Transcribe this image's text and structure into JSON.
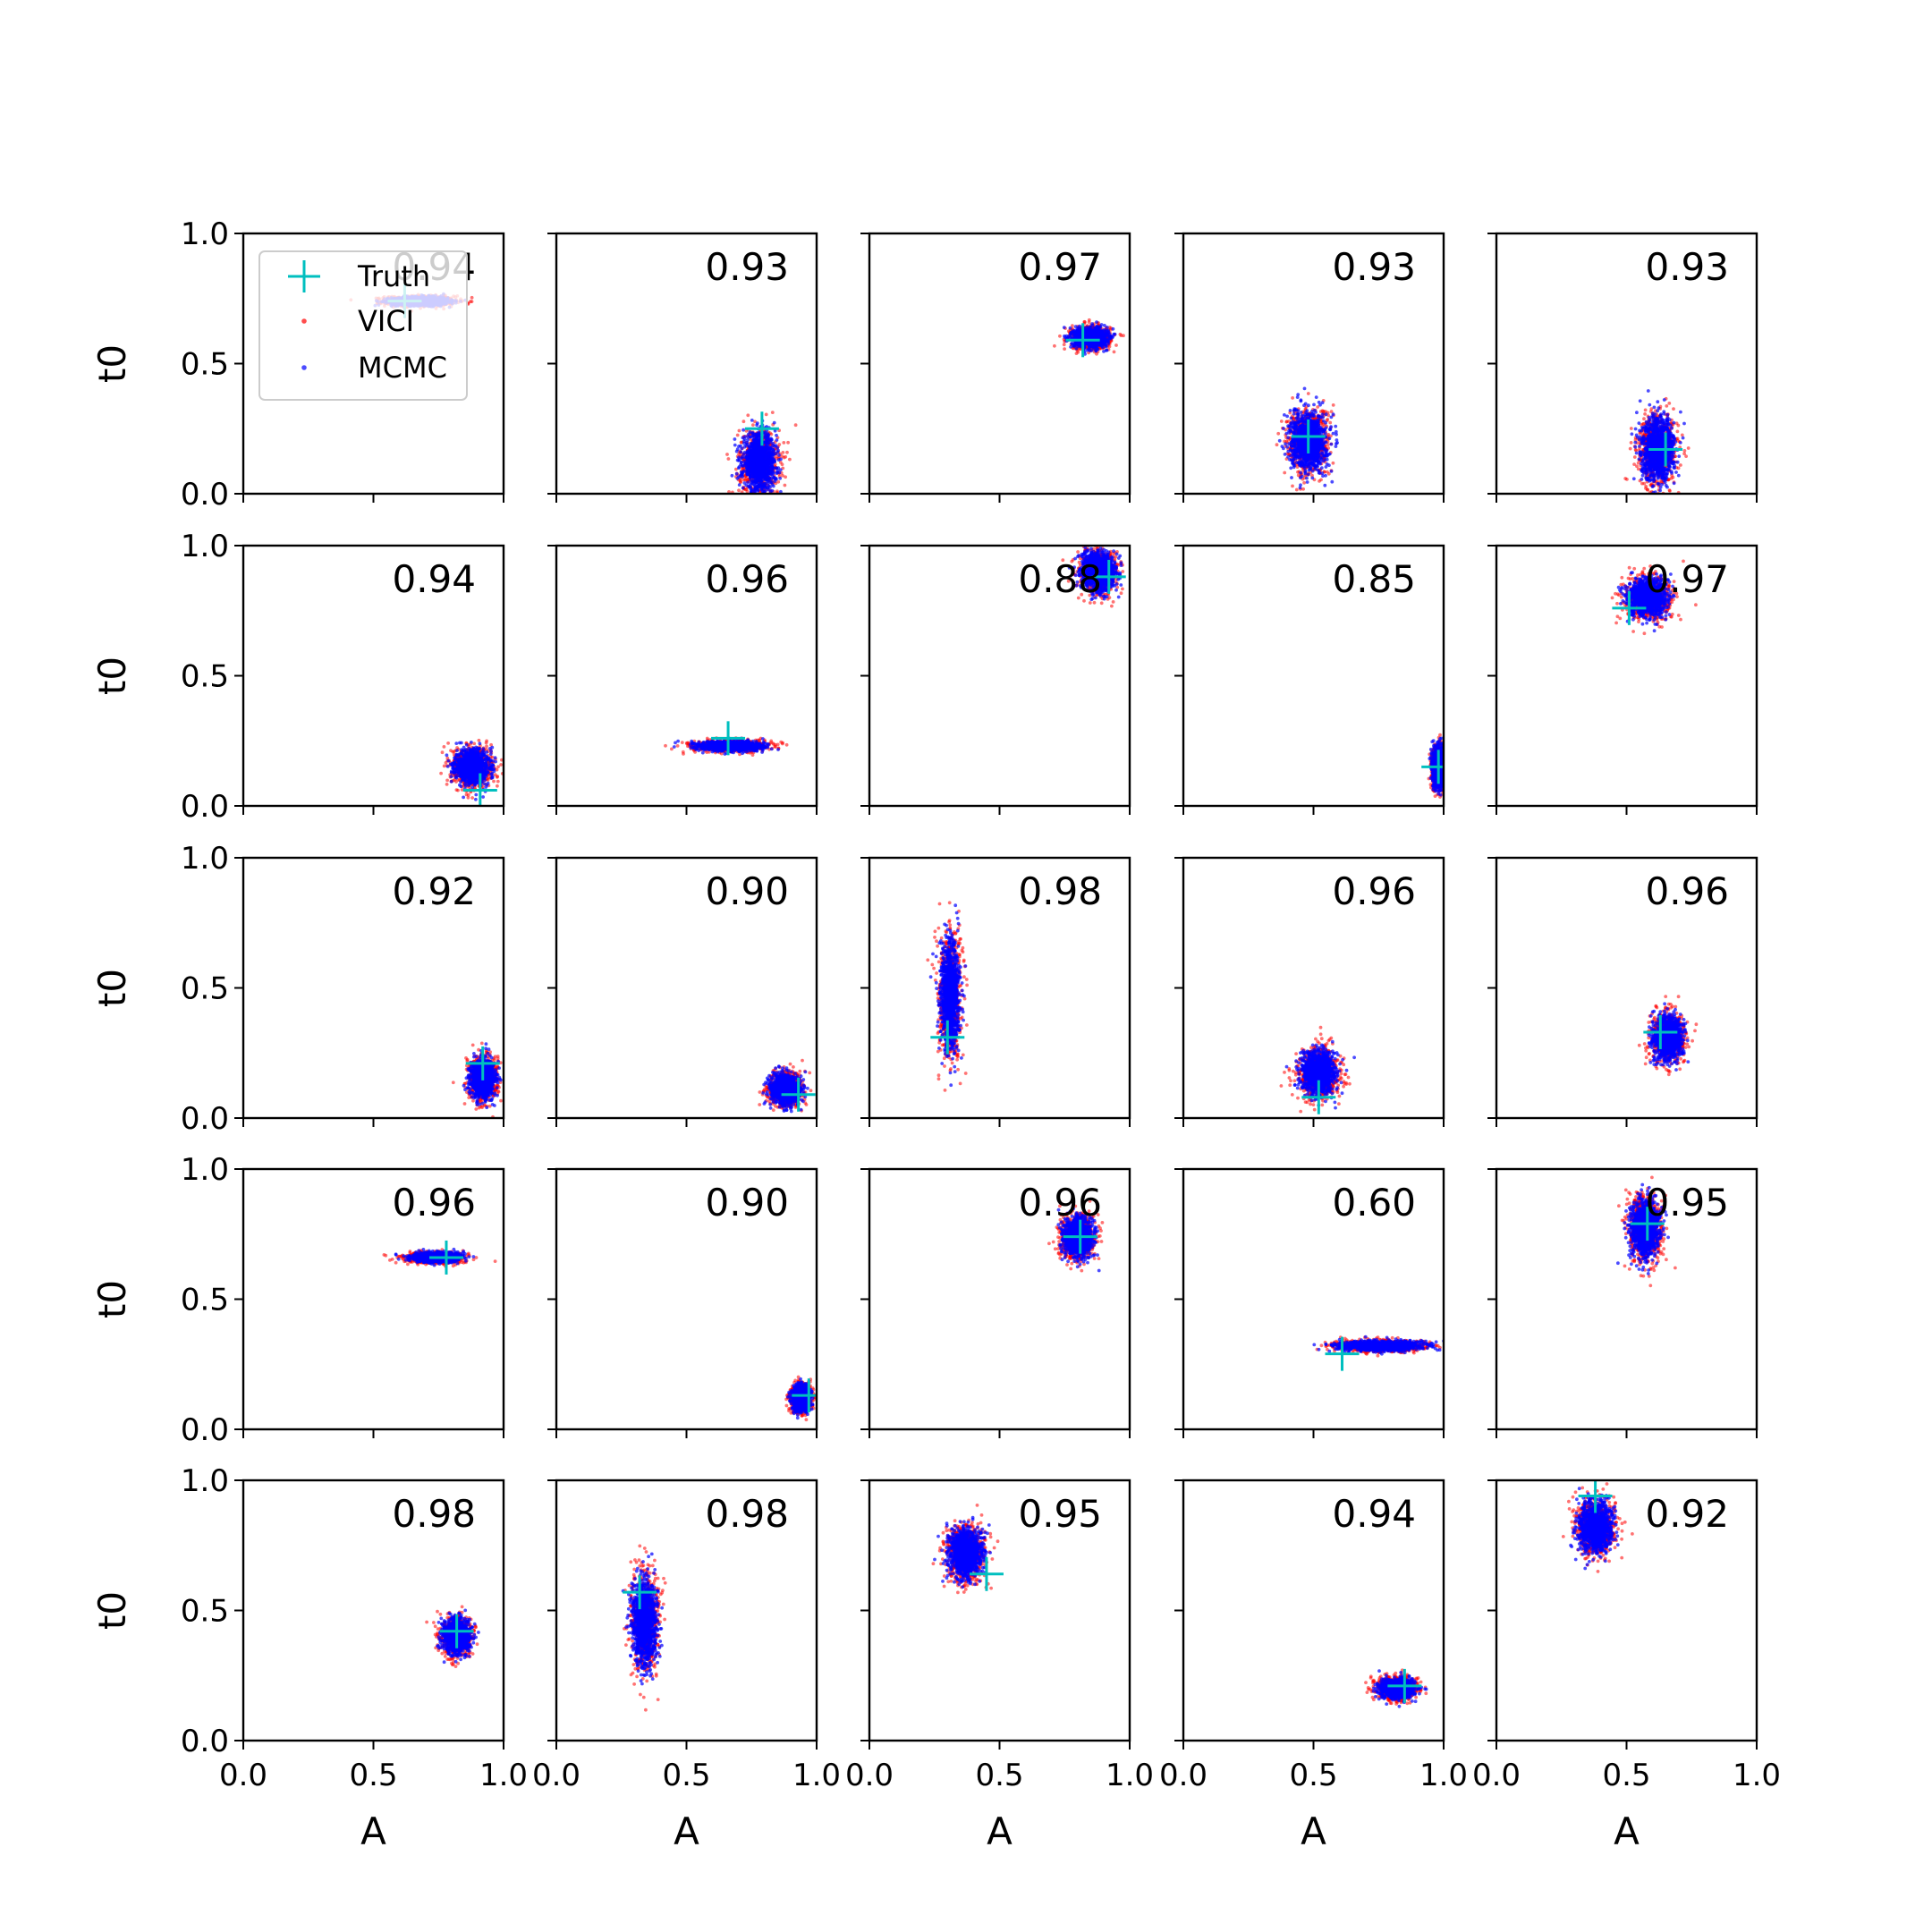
{
  "chart_data": {
    "type": "scatter",
    "grid": false,
    "layout": "5x5",
    "xlabel": "A",
    "ylabel": "t0",
    "xlim": [
      0,
      1
    ],
    "ylim": [
      0,
      1
    ],
    "xticks": [
      "0.0",
      "0.5",
      "1.0"
    ],
    "yticks": [
      "0.0",
      "0.5",
      "1.0"
    ],
    "colors": {
      "vici": "#ff0000",
      "mcmc": "#0000ff",
      "truth": "#00bfbf"
    },
    "legend": {
      "location": "upper-left",
      "entries": [
        {
          "label": "Truth",
          "marker": "plus",
          "color": "#00bfbf"
        },
        {
          "label": "VICI",
          "marker": "dot",
          "color": "#ff0000"
        },
        {
          "label": "MCMC",
          "marker": "dot",
          "color": "#0000ff"
        }
      ]
    },
    "panels": [
      {
        "overlap": "0.94",
        "truth": [
          0.62,
          0.74
        ],
        "blob": {
          "cx": 0.68,
          "cy": 0.74,
          "sx": 0.12,
          "sy": 0.018
        }
      },
      {
        "overlap": "0.93",
        "truth": [
          0.79,
          0.25
        ],
        "blob": {
          "cx": 0.78,
          "cy": 0.12,
          "sx": 0.07,
          "sy": 0.12
        }
      },
      {
        "overlap": "0.97",
        "truth": [
          0.82,
          0.59
        ],
        "blob": {
          "cx": 0.85,
          "cy": 0.6,
          "sx": 0.07,
          "sy": 0.04
        }
      },
      {
        "overlap": "0.93",
        "truth": [
          0.48,
          0.22
        ],
        "blob": {
          "cx": 0.48,
          "cy": 0.2,
          "sx": 0.075,
          "sy": 0.12
        }
      },
      {
        "overlap": "0.93",
        "truth": [
          0.65,
          0.17
        ],
        "blob": {
          "cx": 0.62,
          "cy": 0.17,
          "sx": 0.07,
          "sy": 0.13
        }
      },
      {
        "overlap": "0.94",
        "truth": [
          0.91,
          0.06
        ],
        "blob": {
          "cx": 0.88,
          "cy": 0.15,
          "sx": 0.07,
          "sy": 0.07
        }
      },
      {
        "overlap": "0.96",
        "truth": [
          0.66,
          0.26
        ],
        "blob": {
          "cx": 0.67,
          "cy": 0.23,
          "sx": 0.13,
          "sy": 0.02
        }
      },
      {
        "overlap": "0.88",
        "truth": [
          0.92,
          0.88
        ],
        "blob": {
          "cx": 0.88,
          "cy": 0.9,
          "sx": 0.07,
          "sy": 0.08
        }
      },
      {
        "overlap": "0.85",
        "truth": [
          0.98,
          0.15
        ],
        "blob": {
          "cx": 0.98,
          "cy": 0.15,
          "sx": 0.025,
          "sy": 0.08
        }
      },
      {
        "overlap": "0.97",
        "truth": [
          0.51,
          0.76
        ],
        "blob": {
          "cx": 0.58,
          "cy": 0.8,
          "sx": 0.08,
          "sy": 0.08
        }
      },
      {
        "overlap": "0.92",
        "truth": [
          0.92,
          0.21
        ],
        "blob": {
          "cx": 0.92,
          "cy": 0.15,
          "sx": 0.05,
          "sy": 0.08
        }
      },
      {
        "overlap": "0.90",
        "truth": [
          0.93,
          0.09
        ],
        "blob": {
          "cx": 0.88,
          "cy": 0.11,
          "sx": 0.06,
          "sy": 0.06
        }
      },
      {
        "overlap": "0.98",
        "truth": [
          0.3,
          0.31
        ],
        "blob": {
          "cx": 0.31,
          "cy": 0.47,
          "sx": 0.04,
          "sy": 0.22
        }
      },
      {
        "overlap": "0.96",
        "truth": [
          0.52,
          0.08
        ],
        "blob": {
          "cx": 0.52,
          "cy": 0.17,
          "sx": 0.07,
          "sy": 0.09
        }
      },
      {
        "overlap": "0.96",
        "truth": [
          0.63,
          0.33
        ],
        "blob": {
          "cx": 0.66,
          "cy": 0.31,
          "sx": 0.06,
          "sy": 0.09
        }
      },
      {
        "overlap": "0.96",
        "truth": [
          0.78,
          0.66
        ],
        "blob": {
          "cx": 0.74,
          "cy": 0.66,
          "sx": 0.1,
          "sy": 0.02
        }
      },
      {
        "overlap": "0.90",
        "truth": [
          0.97,
          0.13
        ],
        "blob": {
          "cx": 0.94,
          "cy": 0.12,
          "sx": 0.035,
          "sy": 0.05
        }
      },
      {
        "overlap": "0.96",
        "truth": [
          0.81,
          0.74
        ],
        "blob": {
          "cx": 0.8,
          "cy": 0.74,
          "sx": 0.06,
          "sy": 0.08
        }
      },
      {
        "overlap": "0.60",
        "truth": [
          0.61,
          0.29
        ],
        "blob": {
          "cx": 0.76,
          "cy": 0.32,
          "sx": 0.17,
          "sy": 0.02
        }
      },
      {
        "overlap": "0.95",
        "truth": [
          0.58,
          0.79
        ],
        "blob": {
          "cx": 0.57,
          "cy": 0.77,
          "sx": 0.06,
          "sy": 0.12
        }
      },
      {
        "overlap": "0.98",
        "truth": [
          0.82,
          0.42
        ],
        "blob": {
          "cx": 0.82,
          "cy": 0.4,
          "sx": 0.055,
          "sy": 0.07
        }
      },
      {
        "overlap": "0.98",
        "truth": [
          0.32,
          0.57
        ],
        "blob": {
          "cx": 0.34,
          "cy": 0.45,
          "sx": 0.05,
          "sy": 0.18
        }
      },
      {
        "overlap": "0.95",
        "truth": [
          0.45,
          0.64
        ],
        "blob": {
          "cx": 0.37,
          "cy": 0.72,
          "sx": 0.07,
          "sy": 0.1
        }
      },
      {
        "overlap": "0.94",
        "truth": [
          0.85,
          0.21
        ],
        "blob": {
          "cx": 0.82,
          "cy": 0.2,
          "sx": 0.07,
          "sy": 0.04
        }
      },
      {
        "overlap": "0.92",
        "truth": [
          0.38,
          0.94
        ],
        "blob": {
          "cx": 0.38,
          "cy": 0.82,
          "sx": 0.07,
          "sy": 0.1
        }
      }
    ]
  }
}
